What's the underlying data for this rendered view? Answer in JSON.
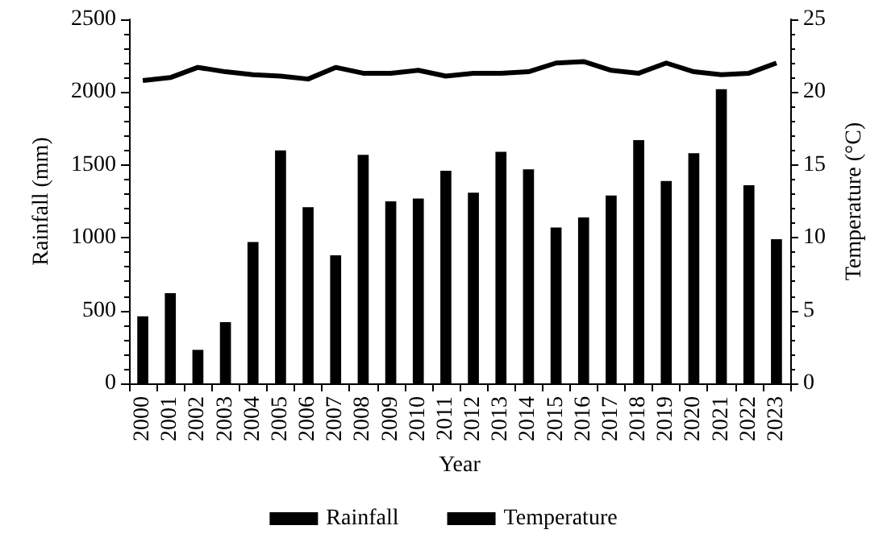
{
  "chart_data": {
    "type": "bar",
    "xlabel": "Year",
    "ylabel": "Rainfall (mm)",
    "y2label": "Temperature (°C)",
    "categories": [
      "2000",
      "2001",
      "2002",
      "2003",
      "2004",
      "2005",
      "2006",
      "2007",
      "2008",
      "2009",
      "2010",
      "2011",
      "2012",
      "2013",
      "2014",
      "2015",
      "2016",
      "2017",
      "2018",
      "2019",
      "2020",
      "2021",
      "2022",
      "2023"
    ],
    "series": [
      {
        "name": "Rainfall",
        "color": "#000000",
        "values": [
          460,
          620,
          230,
          420,
          970,
          1600,
          1210,
          880,
          1570,
          1250,
          1270,
          1460,
          1310,
          1590,
          1470,
          1070,
          1140,
          1290,
          1670,
          1390,
          1580,
          2020,
          1360,
          990
        ]
      },
      {
        "name": "Temperature",
        "type": "line",
        "axis": "y2",
        "color": "#000000",
        "values": [
          20.8,
          21.0,
          21.7,
          21.4,
          21.2,
          21.1,
          20.9,
          21.7,
          21.3,
          21.3,
          21.5,
          21.1,
          21.3,
          21.3,
          21.4,
          22.0,
          22.1,
          21.5,
          21.3,
          22.0,
          21.4,
          21.2,
          21.3,
          22.0
        ]
      }
    ],
    "ylim": [
      0,
      2500
    ],
    "yticks": [
      0,
      500,
      1000,
      1500,
      2000,
      2500
    ],
    "y2lim": [
      0,
      25
    ],
    "y2ticks": [
      0,
      5,
      10,
      15,
      20,
      25
    ],
    "grid": false,
    "legend": "bottom",
    "marker": "none"
  }
}
